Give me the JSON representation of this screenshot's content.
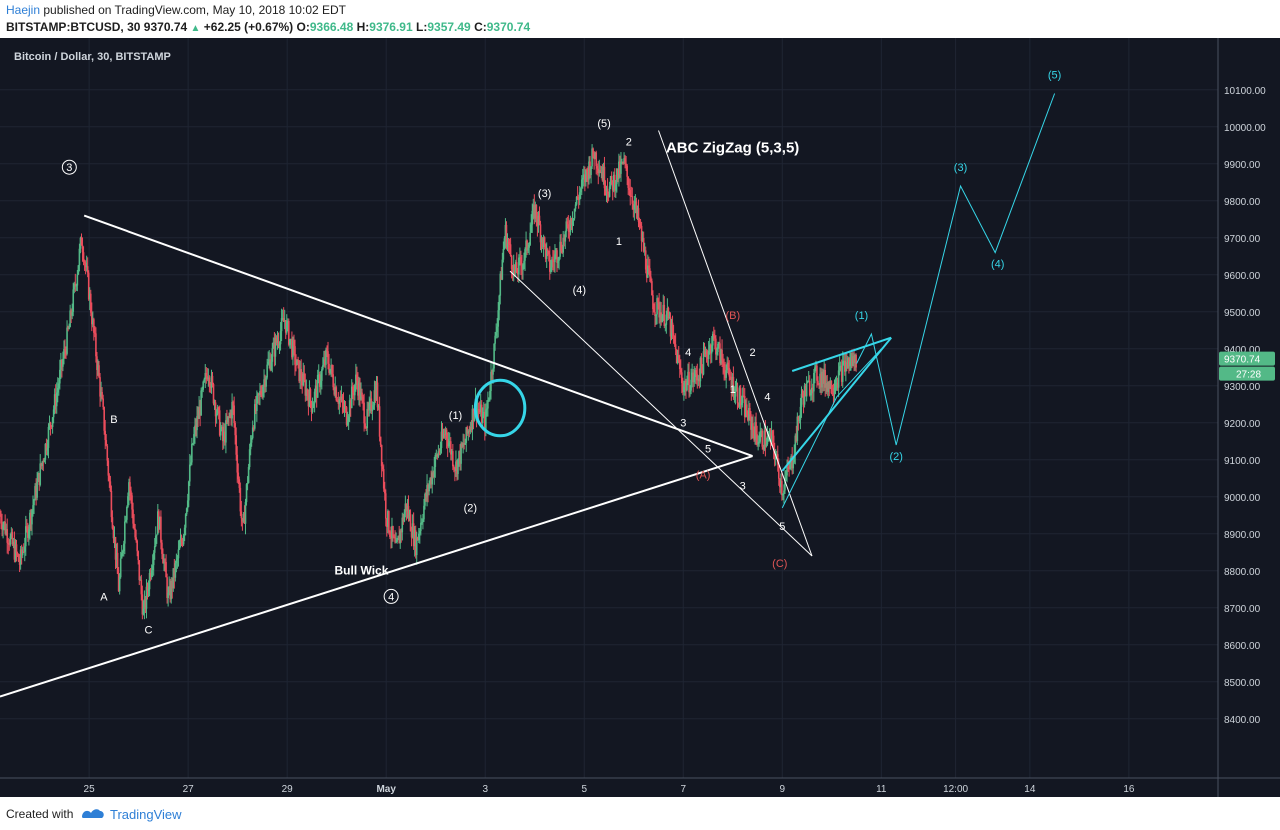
{
  "header": {
    "author": "Haejin",
    "published": " published on TradingView.com, May 10, 2018 10:02 EDT",
    "symbol": "BITSTAMP:BTCUSD, 30",
    "last": "9370.74",
    "up_arrow": "▲",
    "change": "+62.25 (+0.67%)",
    "o_label": "O:",
    "o_value": "9366.48",
    "h_label": "H:",
    "h_value": "9376.91",
    "l_label": "L:",
    "l_value": "9357.49",
    "c_label": "C:",
    "c_value": "9370.74"
  },
  "footer": {
    "created_with": "Created with",
    "brand": "TradingView"
  },
  "colors": {
    "background": "#131722",
    "candle_up": "#53b987",
    "candle_down": "#eb4d5c",
    "trendline": "#ffffff",
    "projection": "#36d6e8",
    "wave_red": "#e05555",
    "price_tag": "#53b987"
  },
  "chart_data": {
    "type": "candlestick",
    "title": "Bitcoin / Dollar, 30, BITSTAMP",
    "annotation": "ABC ZigZag (5,3,5)",
    "bull_wick_label": "Bull Wick",
    "price_tag": "9370.74",
    "time_tag": "27:28",
    "x_ticks": [
      "25",
      "27",
      "29",
      "May",
      "3",
      "5",
      "7",
      "9",
      "11",
      "12:00",
      "14",
      "16"
    ],
    "x_tick_days": [
      25,
      27,
      29,
      31,
      33,
      35,
      37,
      39,
      41,
      42.5,
      44,
      46
    ],
    "xlim": [
      23.2,
      47.8
    ],
    "ylim": [
      8240,
      10240
    ],
    "y_ticks": [
      8400,
      8500,
      8600,
      8700,
      8800,
      8900,
      9000,
      9100,
      9200,
      9300,
      9400,
      9500,
      9600,
      9700,
      9800,
      9900,
      10000,
      10100
    ],
    "price_path": [
      [
        23.2,
        8950
      ],
      [
        23.6,
        8820
      ],
      [
        23.9,
        9000
      ],
      [
        24.3,
        9250
      ],
      [
        24.6,
        9460
      ],
      [
        24.85,
        9700
      ],
      [
        25.0,
        9550
      ],
      [
        25.3,
        9200
      ],
      [
        25.6,
        8750
      ],
      [
        25.8,
        9050
      ],
      [
        26.1,
        8680
      ],
      [
        26.4,
        8950
      ],
      [
        26.6,
        8720
      ],
      [
        26.9,
        8900
      ],
      [
        27.1,
        9150
      ],
      [
        27.4,
        9350
      ],
      [
        27.7,
        9150
      ],
      [
        27.9,
        9250
      ],
      [
        28.1,
        8900
      ],
      [
        28.3,
        9200
      ],
      [
        28.6,
        9350
      ],
      [
        28.95,
        9480
      ],
      [
        29.2,
        9350
      ],
      [
        29.5,
        9250
      ],
      [
        29.8,
        9380
      ],
      [
        30.0,
        9280
      ],
      [
        30.2,
        9220
      ],
      [
        30.4,
        9320
      ],
      [
        30.6,
        9200
      ],
      [
        30.8,
        9300
      ],
      [
        31.0,
        8950
      ],
      [
        31.2,
        8850
      ],
      [
        31.4,
        8980
      ],
      [
        31.6,
        8870
      ],
      [
        31.8,
        9000
      ],
      [
        32.0,
        9100
      ],
      [
        32.2,
        9180
      ],
      [
        32.4,
        9080
      ],
      [
        32.6,
        9150
      ],
      [
        32.8,
        9250
      ],
      [
        33.0,
        9200
      ],
      [
        33.2,
        9420
      ],
      [
        33.4,
        9720
      ],
      [
        33.6,
        9600
      ],
      [
        33.8,
        9650
      ],
      [
        34.0,
        9780
      ],
      [
        34.3,
        9620
      ],
      [
        34.6,
        9700
      ],
      [
        34.9,
        9820
      ],
      [
        35.2,
        9930
      ],
      [
        35.5,
        9830
      ],
      [
        35.8,
        9900
      ],
      [
        36.1,
        9740
      ],
      [
        36.4,
        9520
      ],
      [
        36.7,
        9480
      ],
      [
        37.0,
        9300
      ],
      [
        37.3,
        9330
      ],
      [
        37.6,
        9430
      ],
      [
        37.9,
        9330
      ],
      [
        38.2,
        9250
      ],
      [
        38.5,
        9160
      ],
      [
        38.8,
        9150
      ],
      [
        39.0,
        9020
      ],
      [
        39.2,
        9100
      ],
      [
        39.4,
        9270
      ],
      [
        39.7,
        9330
      ],
      [
        40.0,
        9300
      ],
      [
        40.3,
        9360
      ],
      [
        40.5,
        9370.74
      ]
    ],
    "overlays": [
      {
        "kind": "line",
        "color": "white",
        "width": 2,
        "points": [
          [
            24.9,
            9760
          ],
          [
            38.4,
            9110
          ]
        ]
      },
      {
        "kind": "line",
        "color": "white",
        "width": 2,
        "points": [
          [
            23.2,
            8460
          ],
          [
            38.4,
            9110
          ]
        ]
      },
      {
        "kind": "line",
        "color": "white",
        "width": 1,
        "points": [
          [
            33.5,
            9610
          ],
          [
            39.6,
            8840
          ]
        ]
      },
      {
        "kind": "line",
        "color": "white",
        "width": 1,
        "points": [
          [
            36.5,
            9990
          ],
          [
            39.6,
            8840
          ]
        ]
      },
      {
        "kind": "line",
        "color": "cyan",
        "width": 2,
        "points": [
          [
            39.2,
            9340
          ],
          [
            41.2,
            9430
          ]
        ]
      },
      {
        "kind": "line",
        "color": "cyan",
        "width": 2,
        "points": [
          [
            39.0,
            9070
          ],
          [
            41.2,
            9430
          ]
        ]
      },
      {
        "kind": "line",
        "color": "cyan",
        "width": 1,
        "points": [
          [
            39.0,
            8970
          ],
          [
            40.1,
            9270
          ],
          [
            41.0,
            9400
          ]
        ]
      },
      {
        "kind": "line",
        "color": "cyan",
        "width": 1,
        "points": [
          [
            40.5,
            9360
          ],
          [
            40.8,
            9440
          ],
          [
            41.3,
            9140
          ],
          [
            42.6,
            9840
          ],
          [
            43.3,
            9660
          ],
          [
            44.5,
            10090
          ]
        ]
      },
      {
        "kind": "ellipse",
        "color": "cyan",
        "center": [
          33.3,
          9240
        ],
        "radius_x_days": 0.5,
        "radius_y_price": 75
      }
    ],
    "wave_labels": [
      {
        "text": "3",
        "x": 24.6,
        "y": 9880,
        "style": "circle"
      },
      {
        "text": "B",
        "x": 25.5,
        "y": 9200,
        "style": "white"
      },
      {
        "text": "A",
        "x": 25.3,
        "y": 8720,
        "style": "white"
      },
      {
        "text": "C",
        "x": 26.2,
        "y": 8630,
        "style": "white"
      },
      {
        "text": "4",
        "x": 31.1,
        "y": 8720,
        "style": "circle"
      },
      {
        "text": "(1)",
        "x": 32.4,
        "y": 9210,
        "style": "white"
      },
      {
        "text": "(2)",
        "x": 32.7,
        "y": 8960,
        "style": "white"
      },
      {
        "text": "(3)",
        "x": 34.2,
        "y": 9810,
        "style": "white"
      },
      {
        "text": "(4)",
        "x": 34.9,
        "y": 9550,
        "style": "white"
      },
      {
        "text": "(5)",
        "x": 35.4,
        "y": 10000,
        "style": "white"
      },
      {
        "text": "2",
        "x": 35.9,
        "y": 9950,
        "style": "white"
      },
      {
        "text": "1",
        "x": 35.7,
        "y": 9680,
        "style": "white"
      },
      {
        "text": "4",
        "x": 37.1,
        "y": 9380,
        "style": "white"
      },
      {
        "text": "3",
        "x": 37.0,
        "y": 9190,
        "style": "white"
      },
      {
        "text": "5",
        "x": 37.5,
        "y": 9120,
        "style": "white"
      },
      {
        "text": "(A)",
        "x": 37.4,
        "y": 9050,
        "style": "red"
      },
      {
        "text": "(B)",
        "x": 38.0,
        "y": 9480,
        "style": "red"
      },
      {
        "text": "2",
        "x": 38.4,
        "y": 9380,
        "style": "white"
      },
      {
        "text": "1",
        "x": 38.0,
        "y": 9280,
        "style": "white"
      },
      {
        "text": "4",
        "x": 38.7,
        "y": 9260,
        "style": "white"
      },
      {
        "text": "3",
        "x": 38.2,
        "y": 9020,
        "style": "white"
      },
      {
        "text": "5",
        "x": 39.0,
        "y": 8910,
        "style": "white"
      },
      {
        "text": "(C)",
        "x": 38.95,
        "y": 8810,
        "style": "red"
      },
      {
        "text": "(1)",
        "x": 40.6,
        "y": 9480,
        "style": "cyan"
      },
      {
        "text": "(2)",
        "x": 41.3,
        "y": 9100,
        "style": "cyan"
      },
      {
        "text": "(3)",
        "x": 42.6,
        "y": 9880,
        "style": "cyan"
      },
      {
        "text": "(4)",
        "x": 43.35,
        "y": 9620,
        "style": "cyan"
      },
      {
        "text": "(5)",
        "x": 44.5,
        "y": 10130,
        "style": "cyan"
      }
    ]
  }
}
